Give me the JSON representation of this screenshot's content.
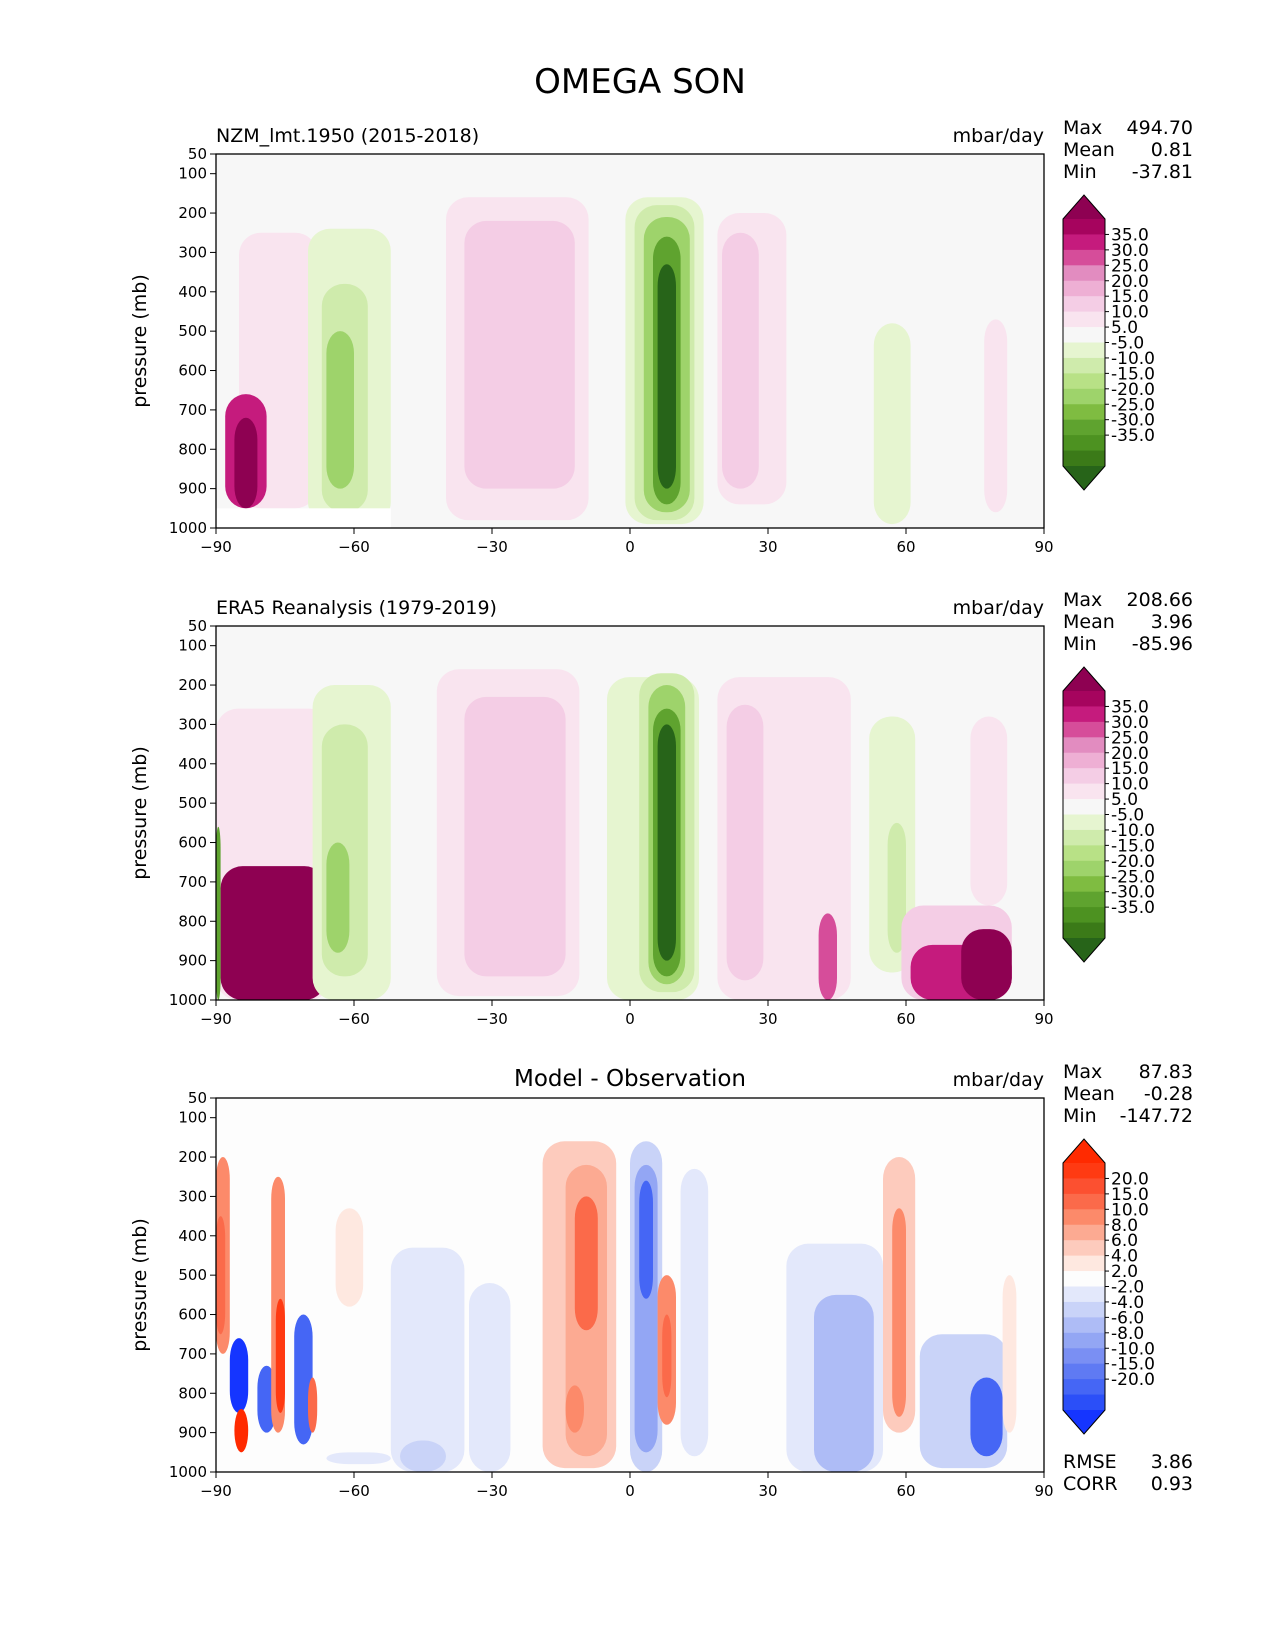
{
  "figure": {
    "title": "OMEGA SON",
    "colors": {
      "background": "#ffffff",
      "plot_background": "#f7f7f7",
      "plot_background_diff": "#fdfdfd"
    }
  },
  "chart_data": [
    {
      "type": "contour",
      "title": "NZM_lmt.1950 (2015-2018)",
      "center_title": "",
      "units": "mbar/day",
      "xlabel": "",
      "ylabel": "pressure (mb)",
      "xlim": [
        -90,
        90
      ],
      "ylim": [
        1000,
        50
      ],
      "xticks": [
        -90,
        -60,
        -30,
        0,
        30,
        60,
        90
      ],
      "xtick_labels": [
        "−90",
        "−60",
        "−30",
        "0",
        "30",
        "60",
        "90"
      ],
      "yticks": [
        50,
        100,
        200,
        300,
        400,
        500,
        600,
        700,
        800,
        900,
        1000
      ],
      "stats": [
        {
          "label": "Max",
          "value": "494.70"
        },
        {
          "label": "Mean",
          "value": "0.81"
        },
        {
          "label": "Min",
          "value": "-37.81"
        }
      ],
      "extra_stats": [],
      "colorbar_labels": [
        "35.0",
        "30.0",
        "25.0",
        "20.0",
        "15.0",
        "10.0",
        "5.0",
        "-5.0",
        "-10.0",
        "-15.0",
        "-20.0",
        "-25.0",
        "-30.0",
        "-35.0"
      ],
      "colorbar_colors": [
        "#8e0152",
        "#a6045e",
        "#c51b7d",
        "#d64d9a",
        "#e28cc0",
        "#eeafd4",
        "#f4cde5",
        "#f9e4ef",
        "#f7f7f7",
        "#e6f5d0",
        "#cfebac",
        "#b8e186",
        "#9ed36b",
        "#7fbc41",
        "#5fa32f",
        "#4d9221",
        "#3b7a18",
        "#276419"
      ],
      "features": [
        {
          "lat_min": -85,
          "lat_max": -68,
          "p_top": 250,
          "p_bot": 950,
          "color": "#f9e4ef"
        },
        {
          "lat_min": -88,
          "lat_max": -79,
          "p_top": 660,
          "p_bot": 950,
          "color": "#c51b7d"
        },
        {
          "lat_min": -86,
          "lat_max": -81,
          "p_top": 720,
          "p_bot": 950,
          "color": "#8e0152"
        },
        {
          "lat_min": -70,
          "lat_max": -52,
          "p_top": 240,
          "p_bot": 990,
          "color": "#e6f5d0"
        },
        {
          "lat_min": -67,
          "lat_max": -57,
          "p_top": 380,
          "p_bot": 960,
          "color": "#cfebac"
        },
        {
          "lat_min": -66,
          "lat_max": -60,
          "p_top": 500,
          "p_bot": 900,
          "color": "#9ed36b"
        },
        {
          "lat_min": -40,
          "lat_max": -9,
          "p_top": 160,
          "p_bot": 980,
          "color": "#f9e4ef"
        },
        {
          "lat_min": -36,
          "lat_max": -12,
          "p_top": 220,
          "p_bot": 900,
          "color": "#f4cde5"
        },
        {
          "lat_min": -1,
          "lat_max": 16,
          "p_top": 160,
          "p_bot": 990,
          "color": "#e6f5d0"
        },
        {
          "lat_min": 1,
          "lat_max": 14,
          "p_top": 180,
          "p_bot": 980,
          "color": "#cfebac"
        },
        {
          "lat_min": 3,
          "lat_max": 13,
          "p_top": 210,
          "p_bot": 960,
          "color": "#9ed36b"
        },
        {
          "lat_min": 5,
          "lat_max": 11,
          "p_top": 260,
          "p_bot": 940,
          "color": "#5fa32f"
        },
        {
          "lat_min": 6,
          "lat_max": 10,
          "p_top": 330,
          "p_bot": 900,
          "color": "#276419"
        },
        {
          "lat_min": 19,
          "lat_max": 34,
          "p_top": 200,
          "p_bot": 940,
          "color": "#f9e4ef"
        },
        {
          "lat_min": 20,
          "lat_max": 28,
          "p_top": 250,
          "p_bot": 900,
          "color": "#f4cde5"
        },
        {
          "lat_min": 53,
          "lat_max": 61,
          "p_top": 480,
          "p_bot": 990,
          "color": "#e6f5d0"
        },
        {
          "lat_min": 77,
          "lat_max": 82,
          "p_top": 470,
          "p_bot": 960,
          "color": "#f9e4ef"
        }
      ],
      "blank_regions": [
        {
          "lat_min": -90,
          "lat_max": -52,
          "p_top": 950,
          "p_bot": 1000
        }
      ]
    },
    {
      "type": "contour",
      "title": "ERA5 Reanalysis (1979-2019)",
      "center_title": "",
      "units": "mbar/day",
      "xlabel": "",
      "ylabel": "pressure (mb)",
      "xlim": [
        -90,
        90
      ],
      "ylim": [
        1000,
        50
      ],
      "xticks": [
        -90,
        -60,
        -30,
        0,
        30,
        60,
        90
      ],
      "xtick_labels": [
        "−90",
        "−60",
        "−30",
        "0",
        "30",
        "60",
        "90"
      ],
      "yticks": [
        50,
        100,
        200,
        300,
        400,
        500,
        600,
        700,
        800,
        900,
        1000
      ],
      "stats": [
        {
          "label": "Max",
          "value": "208.66"
        },
        {
          "label": "Mean",
          "value": "3.96"
        },
        {
          "label": "Min",
          "value": "-85.96"
        }
      ],
      "extra_stats": [],
      "colorbar_labels": [
        "35.0",
        "30.0",
        "25.0",
        "20.0",
        "15.0",
        "10.0",
        "5.0",
        "-5.0",
        "-10.0",
        "-15.0",
        "-20.0",
        "-25.0",
        "-30.0",
        "-35.0"
      ],
      "colorbar_colors": [
        "#8e0152",
        "#a6045e",
        "#c51b7d",
        "#d64d9a",
        "#e28cc0",
        "#eeafd4",
        "#f4cde5",
        "#f9e4ef",
        "#f7f7f7",
        "#e6f5d0",
        "#cfebac",
        "#b8e186",
        "#9ed36b",
        "#7fbc41",
        "#5fa32f",
        "#4d9221",
        "#3b7a18",
        "#276419"
      ],
      "features": [
        {
          "lat_min": -90,
          "lat_max": -65,
          "p_top": 260,
          "p_bot": 1000,
          "color": "#f9e4ef"
        },
        {
          "lat_min": -89,
          "lat_max": -66,
          "p_top": 660,
          "p_bot": 1000,
          "color": "#8e0152"
        },
        {
          "lat_min": -90,
          "lat_max": -89,
          "p_top": 560,
          "p_bot": 1000,
          "color": "#5fa32f"
        },
        {
          "lat_min": -69,
          "lat_max": -52,
          "p_top": 200,
          "p_bot": 1000,
          "color": "#e6f5d0"
        },
        {
          "lat_min": -67,
          "lat_max": -57,
          "p_top": 300,
          "p_bot": 940,
          "color": "#cfebac"
        },
        {
          "lat_min": -66,
          "lat_max": -61,
          "p_top": 600,
          "p_bot": 880,
          "color": "#9ed36b"
        },
        {
          "lat_min": -42,
          "lat_max": -11,
          "p_top": 160,
          "p_bot": 990,
          "color": "#f9e4ef"
        },
        {
          "lat_min": -36,
          "lat_max": -14,
          "p_top": 230,
          "p_bot": 940,
          "color": "#f4cde5"
        },
        {
          "lat_min": -5,
          "lat_max": 15,
          "p_top": 180,
          "p_bot": 1000,
          "color": "#e6f5d0"
        },
        {
          "lat_min": 2,
          "lat_max": 14,
          "p_top": 170,
          "p_bot": 980,
          "color": "#cfebac"
        },
        {
          "lat_min": 4,
          "lat_max": 12,
          "p_top": 200,
          "p_bot": 960,
          "color": "#9ed36b"
        },
        {
          "lat_min": 5,
          "lat_max": 11,
          "p_top": 260,
          "p_bot": 940,
          "color": "#5fa32f"
        },
        {
          "lat_min": 6,
          "lat_max": 10,
          "p_top": 300,
          "p_bot": 900,
          "color": "#276419"
        },
        {
          "lat_min": 19,
          "lat_max": 48,
          "p_top": 180,
          "p_bot": 1000,
          "color": "#f9e4ef"
        },
        {
          "lat_min": 21,
          "lat_max": 29,
          "p_top": 250,
          "p_bot": 950,
          "color": "#f4cde5"
        },
        {
          "lat_min": 41,
          "lat_max": 45,
          "p_top": 780,
          "p_bot": 1000,
          "color": "#d64d9a"
        },
        {
          "lat_min": 52,
          "lat_max": 62,
          "p_top": 280,
          "p_bot": 930,
          "color": "#e6f5d0"
        },
        {
          "lat_min": 56,
          "lat_max": 60,
          "p_top": 550,
          "p_bot": 880,
          "color": "#cfebac"
        },
        {
          "lat_min": 59,
          "lat_max": 83,
          "p_top": 760,
          "p_bot": 1000,
          "color": "#f4cde5"
        },
        {
          "lat_min": 61,
          "lat_max": 83,
          "p_top": 860,
          "p_bot": 1000,
          "color": "#c51b7d"
        },
        {
          "lat_min": 72,
          "lat_max": 83,
          "p_top": 820,
          "p_bot": 1000,
          "color": "#8e0152"
        },
        {
          "lat_min": 74,
          "lat_max": 82,
          "p_top": 280,
          "p_bot": 760,
          "color": "#f9e4ef"
        }
      ],
      "blank_regions": []
    },
    {
      "type": "contour",
      "title": "",
      "center_title": "Model - Observation",
      "units": "mbar/day",
      "xlabel": "",
      "ylabel": "pressure (mb)",
      "xlim": [
        -90,
        90
      ],
      "ylim": [
        1000,
        50
      ],
      "xticks": [
        -90,
        -60,
        -30,
        0,
        30,
        60,
        90
      ],
      "xtick_labels": [
        "−90",
        "−60",
        "−30",
        "0",
        "30",
        "60",
        "90"
      ],
      "yticks": [
        50,
        100,
        200,
        300,
        400,
        500,
        600,
        700,
        800,
        900,
        1000
      ],
      "stats": [
        {
          "label": "Max",
          "value": "87.83"
        },
        {
          "label": "Mean",
          "value": "-0.28"
        },
        {
          "label": "Min",
          "value": "-147.72"
        }
      ],
      "extra_stats": [
        {
          "label": "RMSE",
          "value": "3.86"
        },
        {
          "label": "CORR",
          "value": "0.93"
        }
      ],
      "colorbar_labels": [
        "20.0",
        "15.0",
        "10.0",
        "8.0",
        "6.0",
        "4.0",
        "2.0",
        "-2.0",
        "-4.0",
        "-6.0",
        "-8.0",
        "-10.0",
        "-15.0",
        "-20.0"
      ],
      "colorbar_colors": [
        "#ff2a00",
        "#ff3a12",
        "#fc5030",
        "#fb6a4a",
        "#fc8a6a",
        "#fcaa92",
        "#fdcbbd",
        "#fee8e0",
        "#fdfdfd",
        "#e3e8fb",
        "#c9d3f8",
        "#aebcf6",
        "#93a6f4",
        "#7a8ff3",
        "#5f7af3",
        "#4566f5",
        "#2b4ff8",
        "#1535ff"
      ],
      "features": [
        {
          "lat_min": -90,
          "lat_max": -87,
          "p_top": 200,
          "p_bot": 700,
          "color": "#fc8a6a"
        },
        {
          "lat_min": -90,
          "lat_max": -88,
          "p_top": 350,
          "p_bot": 650,
          "color": "#fb6a4a"
        },
        {
          "lat_min": -87,
          "lat_max": -83,
          "p_top": 660,
          "p_bot": 850,
          "color": "#1535ff"
        },
        {
          "lat_min": -86,
          "lat_max": -83,
          "p_top": 840,
          "p_bot": 950,
          "color": "#ff2a00"
        },
        {
          "lat_min": -81,
          "lat_max": -77,
          "p_top": 730,
          "p_bot": 900,
          "color": "#4566f5"
        },
        {
          "lat_min": -78,
          "lat_max": -75,
          "p_top": 250,
          "p_bot": 900,
          "color": "#fc8a6a"
        },
        {
          "lat_min": -77,
          "lat_max": -75,
          "p_top": 560,
          "p_bot": 850,
          "color": "#ff3a12"
        },
        {
          "lat_min": -73,
          "lat_max": -69,
          "p_top": 600,
          "p_bot": 930,
          "color": "#4566f5"
        },
        {
          "lat_min": -70,
          "lat_max": -68,
          "p_top": 760,
          "p_bot": 900,
          "color": "#fb6a4a"
        },
        {
          "lat_min": -64,
          "lat_max": -58,
          "p_top": 330,
          "p_bot": 580,
          "color": "#fee8e0"
        },
        {
          "lat_min": -66,
          "lat_max": -52,
          "p_top": 950,
          "p_bot": 980,
          "color": "#e3e8fb"
        },
        {
          "lat_min": -52,
          "lat_max": -36,
          "p_top": 430,
          "p_bot": 1000,
          "color": "#e3e8fb"
        },
        {
          "lat_min": -50,
          "lat_max": -40,
          "p_top": 920,
          "p_bot": 1000,
          "color": "#c9d3f8"
        },
        {
          "lat_min": -35,
          "lat_max": -26,
          "p_top": 520,
          "p_bot": 1000,
          "color": "#e3e8fb"
        },
        {
          "lat_min": -19,
          "lat_max": -3,
          "p_top": 160,
          "p_bot": 990,
          "color": "#fdcbbd"
        },
        {
          "lat_min": -14,
          "lat_max": -5,
          "p_top": 220,
          "p_bot": 960,
          "color": "#fcaa92"
        },
        {
          "lat_min": -12,
          "lat_max": -7,
          "p_top": 300,
          "p_bot": 640,
          "color": "#fb6a4a"
        },
        {
          "lat_min": -14,
          "lat_max": -10,
          "p_top": 780,
          "p_bot": 900,
          "color": "#fc8a6a"
        },
        {
          "lat_min": 0,
          "lat_max": 7,
          "p_top": 160,
          "p_bot": 1000,
          "color": "#c9d3f8"
        },
        {
          "lat_min": 1,
          "lat_max": 6,
          "p_top": 220,
          "p_bot": 950,
          "color": "#93a6f4"
        },
        {
          "lat_min": 2,
          "lat_max": 5,
          "p_top": 260,
          "p_bot": 560,
          "color": "#4566f5"
        },
        {
          "lat_min": 6,
          "lat_max": 10,
          "p_top": 500,
          "p_bot": 880,
          "color": "#fc8a6a"
        },
        {
          "lat_min": 7,
          "lat_max": 9,
          "p_top": 600,
          "p_bot": 810,
          "color": "#fb6a4a"
        },
        {
          "lat_min": 11,
          "lat_max": 17,
          "p_top": 230,
          "p_bot": 960,
          "color": "#e3e8fb"
        },
        {
          "lat_min": 34,
          "lat_max": 55,
          "p_top": 420,
          "p_bot": 1000,
          "color": "#e3e8fb"
        },
        {
          "lat_min": 40,
          "lat_max": 53,
          "p_top": 550,
          "p_bot": 1000,
          "color": "#aebcf6"
        },
        {
          "lat_min": 55,
          "lat_max": 62,
          "p_top": 200,
          "p_bot": 900,
          "color": "#fdcbbd"
        },
        {
          "lat_min": 57,
          "lat_max": 60,
          "p_top": 330,
          "p_bot": 860,
          "color": "#fc8a6a"
        },
        {
          "lat_min": 63,
          "lat_max": 82,
          "p_top": 650,
          "p_bot": 990,
          "color": "#c9d3f8"
        },
        {
          "lat_min": 74,
          "lat_max": 81,
          "p_top": 760,
          "p_bot": 960,
          "color": "#4566f5"
        },
        {
          "lat_min": 81,
          "lat_max": 84,
          "p_top": 500,
          "p_bot": 900,
          "color": "#fee8e0"
        }
      ],
      "blank_regions": []
    }
  ]
}
